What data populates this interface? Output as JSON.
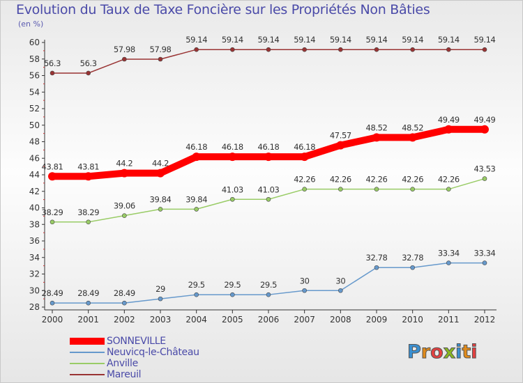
{
  "title": "Evolution du Taux de Taxe Foncière sur les Propriétés Non Bâties",
  "subtitle": "(en %)",
  "logo_text": "Proxiti",
  "logo_colors": [
    "#3a8fd0",
    "#e08a1a",
    "#e34040",
    "#8ab820",
    "#3a8fd0",
    "#e08a1a",
    "#e34040"
  ],
  "chart_data": {
    "type": "line",
    "x": [
      "2000",
      "2001",
      "2002",
      "2003",
      "2004",
      "2005",
      "2006",
      "2007",
      "2008",
      "2009",
      "2010",
      "2011",
      "2012"
    ],
    "ylim": [
      28,
      60
    ],
    "yticks": [
      28,
      30,
      32,
      34,
      36,
      38,
      40,
      42,
      44,
      46,
      48,
      50,
      52,
      54,
      56,
      58,
      60
    ],
    "grid": false,
    "legend_position": "bottom-left",
    "series": [
      {
        "name": "SONNEVILLE",
        "color": "#ff0000",
        "values": [
          43.81,
          43.81,
          44.2,
          44.2,
          46.18,
          46.18,
          46.18,
          46.18,
          47.57,
          48.52,
          48.52,
          49.49,
          49.49
        ],
        "labels": [
          "43.81",
          "43.81",
          "44.2",
          "44.2",
          "46.18",
          "46.18",
          "46.18",
          "46.18",
          "47.57",
          "48.52",
          "48.52",
          "49.49",
          "49.49"
        ]
      },
      {
        "name": "Neuvicq-le-Château",
        "color": "#6699cc",
        "values": [
          28.49,
          28.49,
          28.49,
          29,
          29.5,
          29.5,
          29.5,
          30,
          30,
          32.78,
          32.78,
          33.34,
          33.34
        ],
        "labels": [
          "28.49",
          "28.49",
          "28.49",
          "29",
          "29.5",
          "29.5",
          "29.5",
          "30",
          "30",
          "32.78",
          "32.78",
          "33.34",
          "33.34"
        ]
      },
      {
        "name": "Anville",
        "color": "#99cc66",
        "values": [
          38.29,
          38.29,
          39.06,
          39.84,
          39.84,
          41.03,
          41.03,
          42.26,
          42.26,
          42.26,
          42.26,
          42.26,
          43.53
        ],
        "labels": [
          "38.29",
          "38.29",
          "39.06",
          "39.84",
          "39.84",
          "41.03",
          "41.03",
          "42.26",
          "42.26",
          "42.26",
          "42.26",
          "42.26",
          "43.53"
        ]
      },
      {
        "name": "Mareuil",
        "color": "#993333",
        "values": [
          56.3,
          56.3,
          57.98,
          57.98,
          59.14,
          59.14,
          59.14,
          59.14,
          59.14,
          59.14,
          59.14,
          59.14,
          59.14
        ],
        "labels": [
          "56.3",
          "56.3",
          "57.98",
          "57.98",
          "59.14",
          "59.14",
          "59.14",
          "59.14",
          "59.14",
          "59.14",
          "59.14",
          "59.14",
          "59.14"
        ]
      }
    ]
  }
}
